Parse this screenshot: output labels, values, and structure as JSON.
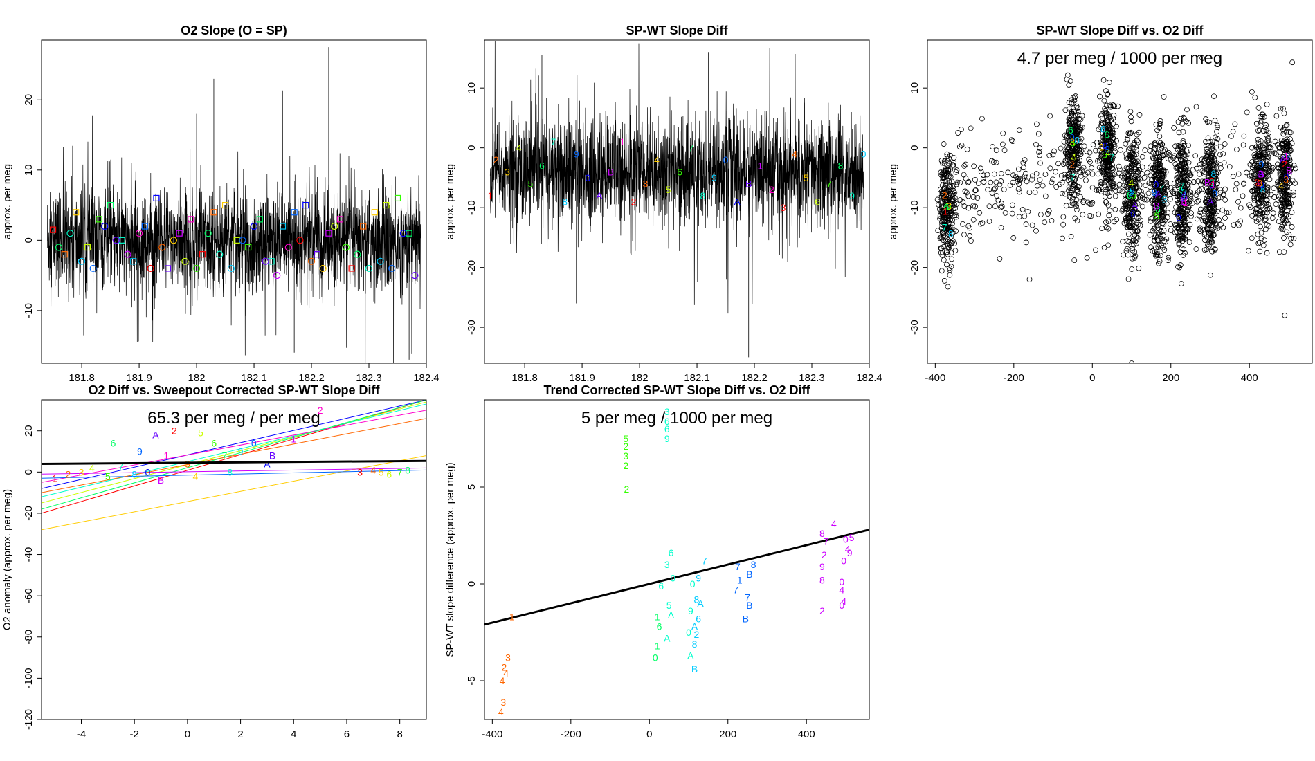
{
  "figure": {
    "colors": {
      "background": "#ffffff",
      "ink": "#000000",
      "rainbow": [
        "#ff0000",
        "#ff6600",
        "#ffcc00",
        "#ccff00",
        "#33ff00",
        "#00ff66",
        "#00ffcc",
        "#00ccff",
        "#0066ff",
        "#0000ff",
        "#6600ff",
        "#cc00ff",
        "#ff00cc"
      ]
    },
    "marker_symbols": [
      "1",
      "2",
      "3",
      "4",
      "5",
      "6",
      "7",
      "8",
      "9",
      "0",
      "A",
      "B"
    ]
  },
  "chart_data": [
    {
      "id": "p1",
      "type": "line",
      "title": "O2 Slope (O = SP)",
      "xlabel": "",
      "ylabel": "approx. per meg",
      "xlim": [
        181.73,
        182.4
      ],
      "ylim": [
        -17.5,
        28.5
      ],
      "xticks": [
        181.8,
        181.9,
        182.0,
        182.1,
        182.2,
        182.3,
        182.4
      ],
      "yticks": [
        -10,
        0,
        10,
        20
      ],
      "series": [
        {
          "name": "O2 slope trace",
          "style": "black noisy line",
          "n_points": 2400,
          "center": 0,
          "typical_range": [
            -8,
            8
          ],
          "spikes": [
            {
              "x": 182.03,
              "y": 23
            },
            {
              "x": 182.0,
              "y": 18
            },
            {
              "x": 182.23,
              "y": 27.5
            },
            {
              "x": 182.17,
              "y": -16
            },
            {
              "x": 182.37,
              "y": -17
            }
          ]
        },
        {
          "name": "squares",
          "style": "rainbow squares",
          "x": [
            181.75,
            181.77,
            181.79,
            181.81,
            181.83,
            181.85,
            181.87,
            181.89,
            181.91,
            181.93,
            181.95,
            181.97,
            181.99,
            182.01,
            182.03,
            182.05,
            182.07,
            182.09,
            182.11,
            182.13,
            182.15,
            182.17,
            182.19,
            182.21,
            182.23,
            182.25,
            182.27,
            182.29,
            182.31,
            182.33,
            182.35,
            182.37
          ],
          "y": [
            1.5,
            -2,
            4,
            -1,
            3,
            5,
            0,
            -3,
            2,
            6,
            -4,
            1,
            3,
            -2,
            4,
            5,
            0,
            -1,
            3,
            -3,
            2,
            4,
            5,
            -2,
            1,
            3,
            -4,
            2,
            4,
            5,
            6,
            1
          ]
        },
        {
          "name": "circles",
          "style": "rainbow circles",
          "x": [
            181.76,
            181.78,
            181.8,
            181.82,
            181.84,
            181.86,
            181.88,
            181.9,
            181.92,
            181.94,
            181.96,
            181.98,
            182.0,
            182.02,
            182.04,
            182.06,
            182.08,
            182.1,
            182.12,
            182.14,
            182.16,
            182.18,
            182.2,
            182.22,
            182.24,
            182.26,
            182.28,
            182.3,
            182.32,
            182.34,
            182.36,
            182.38
          ],
          "y": [
            -1,
            1,
            -3,
            -4,
            2,
            0,
            -2,
            1,
            -4,
            -1,
            0,
            -3,
            -4,
            1,
            -2,
            -4,
            0,
            2,
            -3,
            -5,
            -1,
            0,
            -3,
            -4,
            2,
            -1,
            -2,
            -4,
            -3,
            -4,
            1,
            -5
          ]
        }
      ]
    },
    {
      "id": "p2",
      "type": "line",
      "title": "SP-WT Slope Diff",
      "xlabel": "",
      "ylabel": "approx. per meg",
      "xlim": [
        181.73,
        182.4
      ],
      "ylim": [
        -36,
        18
      ],
      "xticks": [
        181.8,
        181.9,
        182.0,
        182.1,
        182.2,
        182.3,
        182.4
      ],
      "yticks": [
        -30,
        -20,
        -10,
        0,
        10
      ],
      "series": [
        {
          "name": "SP-WT difference trace",
          "style": "black noisy line",
          "n_points": 2400,
          "center": -4,
          "typical_range": [
            -14,
            6
          ],
          "spikes": [
            {
              "x": 181.83,
              "y": 15.5
            },
            {
              "x": 182.12,
              "y": 16
            },
            {
              "x": 182.19,
              "y": -35
            },
            {
              "x": 181.89,
              "y": -26
            }
          ]
        },
        {
          "name": "labels",
          "style": "rainbow digits",
          "x": [
            181.74,
            181.75,
            181.77,
            181.79,
            181.81,
            181.83,
            181.85,
            181.87,
            181.89,
            181.91,
            181.93,
            181.95,
            181.97,
            181.99,
            182.01,
            182.03,
            182.05,
            182.07,
            182.09,
            182.11,
            182.13,
            182.15,
            182.17,
            182.19,
            182.21,
            182.23,
            182.25,
            182.27,
            182.29,
            182.31,
            182.33,
            182.35,
            182.37,
            182.39
          ],
          "y": [
            -8,
            -2,
            -4,
            0,
            -6,
            -3,
            1,
            -9,
            -1,
            -5,
            -8,
            -4,
            1,
            -9,
            -6,
            -2,
            -7,
            -4,
            0,
            -8,
            -5,
            -2,
            -9,
            -6,
            -3,
            -7,
            -10,
            -1,
            -5,
            -9,
            -6,
            -3,
            -8,
            -1
          ]
        }
      ]
    },
    {
      "id": "p3",
      "type": "scatter",
      "title": "SP-WT Slope Diff vs. O2 Diff",
      "annotation": "4.7 per meg / 1000 per meg",
      "xlabel": "",
      "ylabel": "approx. per meg",
      "xlim": [
        -420,
        560
      ],
      "ylim": [
        -36,
        18
      ],
      "xticks": [
        -400,
        -200,
        0,
        200,
        400
      ],
      "yticks": [
        -30,
        -20,
        -10,
        0,
        10
      ],
      "clusters": [
        {
          "x": -370,
          "y_center": -10,
          "spread": 9
        },
        {
          "x": -50,
          "y_center": 0,
          "spread": 8
        },
        {
          "x": 40,
          "y_center": 0,
          "spread": 8
        },
        {
          "x": 100,
          "y_center": -8,
          "spread": 10
        },
        {
          "x": 170,
          "y_center": -8,
          "spread": 10
        },
        {
          "x": 230,
          "y_center": -8,
          "spread": 10
        },
        {
          "x": 300,
          "y_center": -7,
          "spread": 10
        },
        {
          "x": 430,
          "y_center": -5,
          "spread": 9
        },
        {
          "x": 490,
          "y_center": -5,
          "spread": 9
        }
      ],
      "outliers": [
        {
          "x": 100,
          "y": -36
        },
        {
          "x": 490,
          "y": -28
        },
        {
          "x": -160,
          "y": -22
        },
        {
          "x": 280,
          "y": 15
        }
      ]
    },
    {
      "id": "p4",
      "type": "line",
      "title": "O2 Diff vs. Sweepout Corrected SP-WT Slope Diff",
      "annotation": "65.3 per meg / per meg",
      "xlabel": "",
      "ylabel": "O2 anomaly (approx. per meg)",
      "xlim": [
        -5.5,
        9
      ],
      "ylim": [
        -120,
        35
      ],
      "xticks": [
        -4,
        -2,
        0,
        2,
        4,
        6,
        8
      ],
      "yticks": [
        -120,
        -100,
        -80,
        -60,
        -40,
        -20,
        0,
        20
      ],
      "fit_line": {
        "intercept": 4.5,
        "slope": 0.1
      },
      "segments": [
        {
          "x": [
            -5.5,
            9
          ],
          "y": [
            -20,
            35
          ]
        },
        {
          "x": [
            -5.5,
            9
          ],
          "y": [
            -15,
            34
          ]
        },
        {
          "x": [
            -5.5,
            9
          ],
          "y": [
            -12,
            33
          ]
        },
        {
          "x": [
            -5.5,
            9
          ],
          "y": [
            -8,
            35
          ]
        },
        {
          "x": [
            -5.5,
            9
          ],
          "y": [
            -5,
            30
          ]
        },
        {
          "x": [
            -5.5,
            9
          ],
          "y": [
            -28,
            8
          ]
        },
        {
          "x": [
            -5.5,
            9
          ],
          "y": [
            -18,
            35
          ]
        },
        {
          "x": [
            -5.5,
            9
          ],
          "y": [
            -3,
            1
          ]
        },
        {
          "x": [
            -5.5,
            9
          ],
          "y": [
            -1,
            2
          ]
        },
        {
          "x": [
            -5.5,
            9
          ],
          "y": [
            -10,
            26
          ]
        }
      ],
      "labels_x": [
        -5,
        -4.5,
        -4,
        -3.6,
        -3,
        -2.8,
        -2.5,
        -2,
        -1.8,
        -1.5,
        -1.2,
        -1,
        -0.8,
        -0.5,
        0,
        0.3,
        0.5,
        1,
        1.4,
        1.6,
        2,
        2.5,
        3,
        3.2,
        4,
        5,
        6.5,
        7,
        7.3,
        7.6,
        8,
        8.3
      ],
      "labels_y": [
        -3,
        -1,
        0,
        2,
        -2,
        14,
        3,
        -1,
        10,
        0,
        18,
        -4,
        8,
        20,
        4,
        -2,
        19,
        14,
        8,
        0,
        10,
        14,
        4,
        8,
        16,
        30,
        0,
        1,
        0,
        -1,
        0,
        1
      ]
    },
    {
      "id": "p5",
      "type": "scatter",
      "title": "Trend Corrected SP-WT Slope Diff vs. O2 Diff",
      "annotation": "5 per meg / 1000 per meg",
      "xlabel": "",
      "ylabel": "SP-WT slope difference (approx. per meg)",
      "xlim": [
        -420,
        560
      ],
      "ylim": [
        -7,
        9.5
      ],
      "xticks": [
        -400,
        -200,
        0,
        200,
        400
      ],
      "yticks": [
        -5,
        0,
        5
      ],
      "fit_line": {
        "intercept": 0.0,
        "slope": 0.005
      },
      "points": [
        {
          "x": -350,
          "y": -1.7,
          "l": "1"
        },
        {
          "x": -360,
          "y": -3.8,
          "l": "3"
        },
        {
          "x": -370,
          "y": -4.3,
          "l": "2"
        },
        {
          "x": -365,
          "y": -4.6,
          "l": "4"
        },
        {
          "x": -375,
          "y": -5.0,
          "l": "4"
        },
        {
          "x": -372,
          "y": -6.1,
          "l": "3"
        },
        {
          "x": -378,
          "y": -6.6,
          "l": "4"
        },
        {
          "x": -60,
          "y": 7.5,
          "l": "5"
        },
        {
          "x": -60,
          "y": 7.1,
          "l": "2"
        },
        {
          "x": -60,
          "y": 6.6,
          "l": "3"
        },
        {
          "x": -60,
          "y": 6.1,
          "l": "2"
        },
        {
          "x": -58,
          "y": 4.9,
          "l": "2"
        },
        {
          "x": 45,
          "y": 8.9,
          "l": "3"
        },
        {
          "x": 45,
          "y": 8.4,
          "l": "6"
        },
        {
          "x": 45,
          "y": 8.0,
          "l": "6"
        },
        {
          "x": 45,
          "y": 7.5,
          "l": "9"
        },
        {
          "x": 55,
          "y": 1.6,
          "l": "6"
        },
        {
          "x": 45,
          "y": 1.0,
          "l": "3"
        },
        {
          "x": 60,
          "y": 0.3,
          "l": "0"
        },
        {
          "x": 30,
          "y": -0.1,
          "l": "6"
        },
        {
          "x": 50,
          "y": -1.1,
          "l": "5"
        },
        {
          "x": 55,
          "y": -1.6,
          "l": "A"
        },
        {
          "x": 20,
          "y": -1.7,
          "l": "1"
        },
        {
          "x": 25,
          "y": -2.2,
          "l": "6"
        },
        {
          "x": 45,
          "y": -2.8,
          "l": "A"
        },
        {
          "x": 20,
          "y": -3.2,
          "l": "1"
        },
        {
          "x": 15,
          "y": -3.8,
          "l": "0"
        },
        {
          "x": 140,
          "y": 1.2,
          "l": "7"
        },
        {
          "x": 125,
          "y": 0.3,
          "l": "9"
        },
        {
          "x": 110,
          "y": 0.0,
          "l": "0"
        },
        {
          "x": 120,
          "y": -0.8,
          "l": "8"
        },
        {
          "x": 130,
          "y": -1.0,
          "l": "A"
        },
        {
          "x": 105,
          "y": -1.4,
          "l": "9"
        },
        {
          "x": 125,
          "y": -1.8,
          "l": "6"
        },
        {
          "x": 115,
          "y": -2.2,
          "l": "A"
        },
        {
          "x": 120,
          "y": -2.6,
          "l": "2"
        },
        {
          "x": 100,
          "y": -2.5,
          "l": "0"
        },
        {
          "x": 115,
          "y": -3.1,
          "l": "8"
        },
        {
          "x": 105,
          "y": -3.7,
          "l": "A"
        },
        {
          "x": 115,
          "y": -4.4,
          "l": "B"
        },
        {
          "x": 225,
          "y": 0.9,
          "l": "7"
        },
        {
          "x": 230,
          "y": 0.2,
          "l": "1"
        },
        {
          "x": 220,
          "y": -0.3,
          "l": "7"
        },
        {
          "x": 265,
          "y": 1.0,
          "l": "8"
        },
        {
          "x": 255,
          "y": 0.5,
          "l": "B"
        },
        {
          "x": 250,
          "y": -0.7,
          "l": "7"
        },
        {
          "x": 255,
          "y": -1.1,
          "l": "B"
        },
        {
          "x": 245,
          "y": -1.8,
          "l": "B"
        },
        {
          "x": 470,
          "y": 3.1,
          "l": "4"
        },
        {
          "x": 440,
          "y": 2.6,
          "l": "8"
        },
        {
          "x": 450,
          "y": 2.2,
          "l": "7"
        },
        {
          "x": 445,
          "y": 1.5,
          "l": "2"
        },
        {
          "x": 440,
          "y": 0.9,
          "l": "9"
        },
        {
          "x": 440,
          "y": 0.2,
          "l": "8"
        },
        {
          "x": 440,
          "y": -1.4,
          "l": "2"
        },
        {
          "x": 500,
          "y": 2.3,
          "l": "0"
        },
        {
          "x": 515,
          "y": 2.4,
          "l": "5"
        },
        {
          "x": 505,
          "y": 1.8,
          "l": "4"
        },
        {
          "x": 510,
          "y": 1.6,
          "l": "9"
        },
        {
          "x": 495,
          "y": 1.2,
          "l": "0"
        },
        {
          "x": 490,
          "y": 0.1,
          "l": "0"
        },
        {
          "x": 490,
          "y": -0.3,
          "l": "4"
        },
        {
          "x": 495,
          "y": -0.9,
          "l": "4"
        },
        {
          "x": 490,
          "y": -1.1,
          "l": "0"
        }
      ]
    }
  ]
}
